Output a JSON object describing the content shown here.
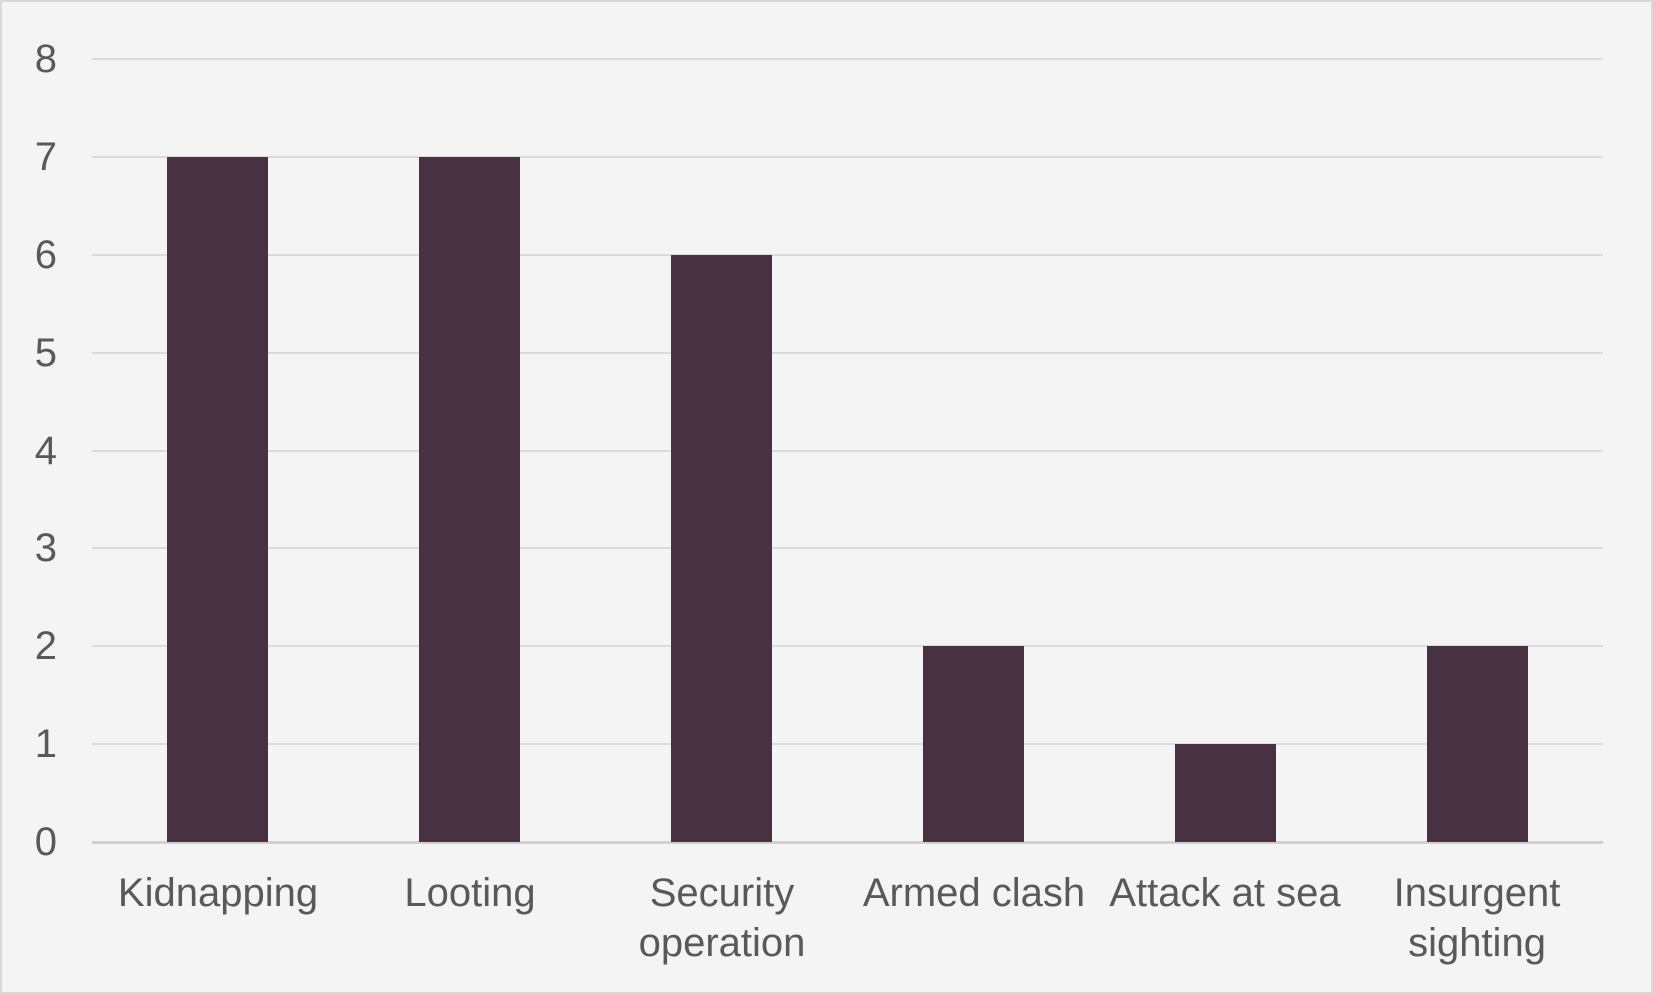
{
  "chart_data": {
    "type": "bar",
    "title": "",
    "xlabel": "",
    "ylabel": "",
    "categories": [
      "Kidnapping",
      "Looting",
      "Security operation",
      "Armed clash",
      "Attack at sea",
      "Insurgent sighting"
    ],
    "category_lines": [
      [
        "Kidnapping"
      ],
      [
        "Looting"
      ],
      [
        "Security",
        "operation"
      ],
      [
        "Armed clash"
      ],
      [
        "Attack at sea"
      ],
      [
        "Insurgent",
        "sighting"
      ]
    ],
    "values": [
      7,
      7,
      6,
      2,
      1,
      2
    ],
    "ylim": [
      0,
      8
    ],
    "y_ticks": [
      0,
      1,
      2,
      3,
      4,
      5,
      6,
      7,
      8
    ],
    "y_tick_labels": [
      "0",
      "1",
      "2",
      "3",
      "4",
      "5",
      "6",
      "7",
      "8"
    ],
    "grid": true,
    "legend": "none",
    "colors": {
      "bar": "#483242",
      "background": "#f5f4f4",
      "gridline": "#dcdada",
      "axis_line": "#d2cfcf",
      "tick_label": "#595959",
      "frame_border": "#d9d9d9"
    }
  }
}
